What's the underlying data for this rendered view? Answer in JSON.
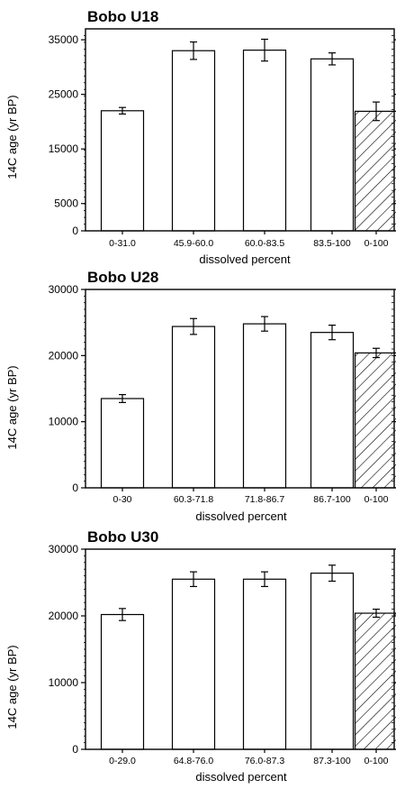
{
  "chart_data": [
    {
      "type": "bar",
      "title": "Bobo U18",
      "xlabel": "dissolved percent",
      "ylabel": "14C age (yr BP)",
      "ylim": [
        0,
        37000
      ],
      "yticks": [
        0,
        5000,
        15000,
        25000,
        35000
      ],
      "categories": [
        "0-31.0",
        "45.9-60.0",
        "60.0-83.5",
        "83.5-100",
        "0-100"
      ],
      "values": [
        22000,
        33000,
        33100,
        31500,
        21900
      ],
      "errors": [
        600,
        1600,
        2000,
        1100,
        1700
      ],
      "hatched": [
        false,
        false,
        false,
        false,
        true
      ],
      "grid": false,
      "legend": "none"
    },
    {
      "type": "bar",
      "title": "Bobo U28",
      "xlabel": "dissolved percent",
      "ylabel": "14C age (yr BP)",
      "ylim": [
        0,
        30000
      ],
      "yticks": [
        0,
        10000,
        20000,
        30000
      ],
      "categories": [
        "0-30",
        "60.3-71.8",
        "71.8-86.7",
        "86.7-100",
        "0-100"
      ],
      "values": [
        13500,
        24400,
        24800,
        23500,
        20400
      ],
      "errors": [
        600,
        1200,
        1100,
        1100,
        700
      ],
      "hatched": [
        false,
        false,
        false,
        false,
        true
      ],
      "grid": false,
      "legend": "none"
    },
    {
      "type": "bar",
      "title": "Bobo U30",
      "xlabel": "dissolved percent",
      "ylabel": "14C age (yr BP)",
      "ylim": [
        0,
        30000
      ],
      "yticks": [
        0,
        10000,
        20000,
        30000
      ],
      "categories": [
        "0-29.0",
        "64.8-76.0",
        "76.0-87.3",
        "87.3-100",
        "0-100"
      ],
      "values": [
        20200,
        25500,
        25500,
        26400,
        20400
      ],
      "errors": [
        900,
        1100,
        1100,
        1200,
        600
      ],
      "hatched": [
        false,
        false,
        false,
        false,
        true
      ],
      "grid": false,
      "legend": "none"
    }
  ]
}
